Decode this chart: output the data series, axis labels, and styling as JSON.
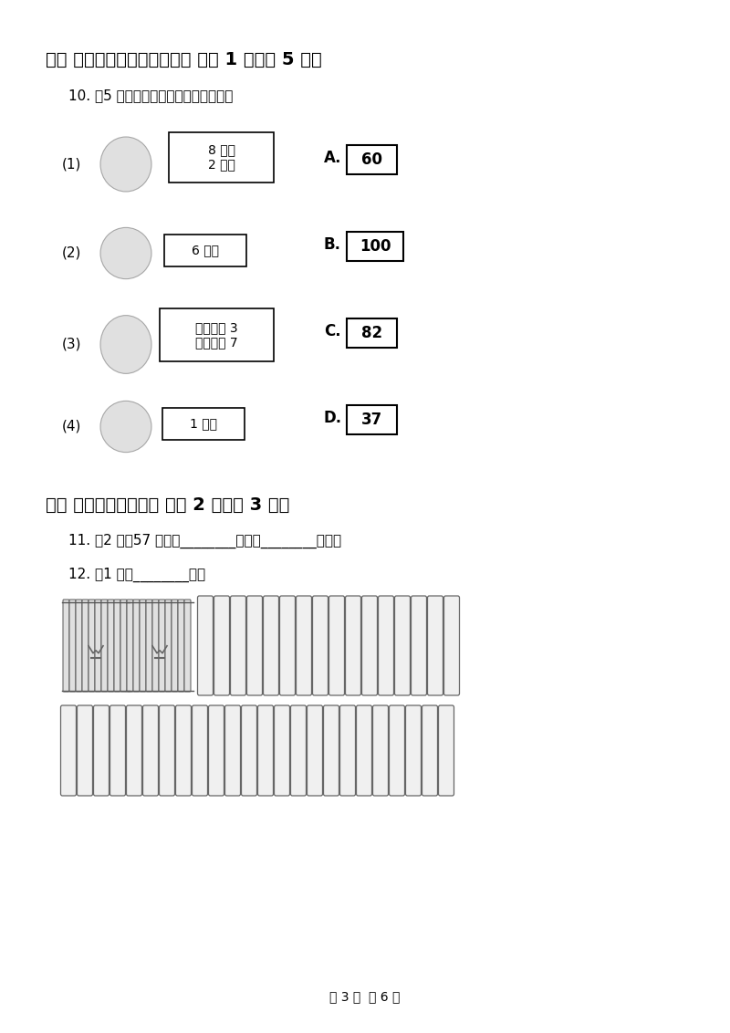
{
  "title_section5": "五、 请帮小猴把桃子分一分。 （共 1 题；共 5 分）",
  "subtitle_q10": "10. （5 分）连一连．帮小动物找号码．",
  "left_labels": [
    "(1)",
    "(2)",
    "(3)",
    "(4)"
  ],
  "left_box_texts": [
    "8 个十\n2 个一",
    "6 个十",
    "十位上是 3\n个位上是 7",
    "1 个百"
  ],
  "right_labels": [
    "A.",
    "B.",
    "C.",
    "D."
  ],
  "right_values": [
    "60",
    "100",
    "82",
    "37"
  ],
  "title_section6": "六、 想一想，猜一猜。 （共 2 题；共 3 分）",
  "q11_text": "11. （2 分）57 里面有________个十和________个一。",
  "q12_text": "12. （1 分）________根。",
  "footer": "第 3 页  共 6 页",
  "bg_color": "#ffffff",
  "n_singles_row1": 16,
  "n_singles_row2": 24,
  "n_bundle_sticks": 10
}
